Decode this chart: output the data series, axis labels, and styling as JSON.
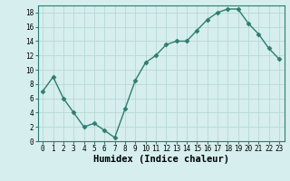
{
  "x": [
    0,
    1,
    2,
    3,
    4,
    5,
    6,
    7,
    8,
    9,
    10,
    11,
    12,
    13,
    14,
    15,
    16,
    17,
    18,
    19,
    20,
    21,
    22,
    23
  ],
  "y": [
    7,
    9,
    6,
    4,
    2,
    2.5,
    1.5,
    0.5,
    4.5,
    8.5,
    11,
    12,
    13.5,
    14,
    14,
    15.5,
    17,
    18,
    18.5,
    18.5,
    16.5,
    15,
    13,
    11.5
  ],
  "line_color": "#2e7d6e",
  "marker": "D",
  "marker_size": 2.5,
  "bg_color": "#d6eeee",
  "grid_color": "#b8d8d8",
  "xlabel": "Humidex (Indice chaleur)",
  "xlim": [
    -0.5,
    23.5
  ],
  "ylim": [
    0,
    19
  ],
  "yticks": [
    0,
    2,
    4,
    6,
    8,
    10,
    12,
    14,
    16,
    18
  ],
  "xticks": [
    0,
    1,
    2,
    3,
    4,
    5,
    6,
    7,
    8,
    9,
    10,
    11,
    12,
    13,
    14,
    15,
    16,
    17,
    18,
    19,
    20,
    21,
    22,
    23
  ],
  "tick_fontsize": 5.5,
  "xlabel_fontsize": 7.5,
  "line_width": 1.0
}
